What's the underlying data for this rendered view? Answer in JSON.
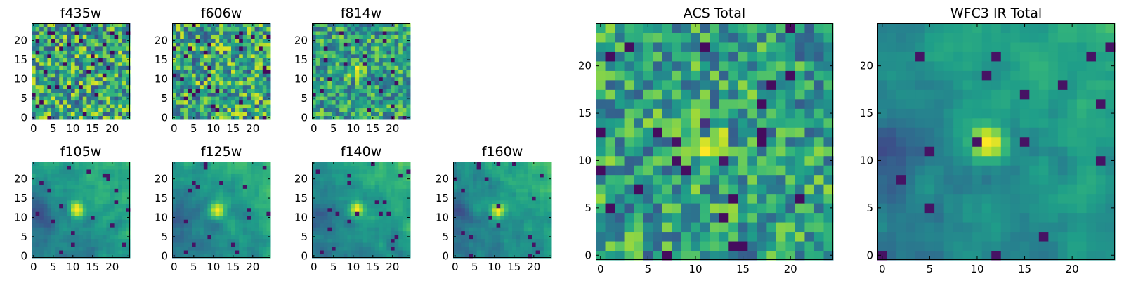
{
  "chart_data": [
    {
      "type": "heatmap",
      "title": "f435w",
      "style": "noise",
      "xlim": [
        0,
        24
      ],
      "ylim": [
        0,
        24
      ],
      "xticks": [
        "0",
        "5",
        "10",
        "15",
        "20"
      ],
      "yticks": [
        "0",
        "5",
        "10",
        "15",
        "20"
      ],
      "color_low": "#440154",
      "color_high": "#fde725"
    },
    {
      "type": "heatmap",
      "title": "f606w",
      "style": "noise",
      "xlim": [
        0,
        24
      ],
      "ylim": [
        0,
        24
      ],
      "xticks": [
        "0",
        "5",
        "10",
        "15",
        "20"
      ],
      "yticks": [
        "0",
        "5",
        "10",
        "15",
        "20"
      ],
      "color_low": "#440154",
      "color_high": "#fde725"
    },
    {
      "type": "heatmap",
      "title": "f814w",
      "style": "noise-peak",
      "peak": [
        11,
        12
      ],
      "xlim": [
        0,
        24
      ],
      "ylim": [
        0,
        24
      ],
      "xticks": [
        "0",
        "5",
        "10",
        "15",
        "20"
      ],
      "yticks": [
        "0",
        "5",
        "10",
        "15",
        "20"
      ],
      "color_low": "#440154",
      "color_high": "#fde725"
    },
    {
      "type": "heatmap",
      "title": "f105w",
      "style": "smooth-peak",
      "peak": [
        11,
        12
      ],
      "xlim": [
        0,
        24
      ],
      "ylim": [
        0,
        24
      ],
      "xticks": [
        "0",
        "5",
        "10",
        "15",
        "20"
      ],
      "yticks": [
        "0",
        "5",
        "10",
        "15",
        "20"
      ],
      "color_low": "#440154",
      "color_high": "#fde725"
    },
    {
      "type": "heatmap",
      "title": "f125w",
      "style": "smooth-peak",
      "peak": [
        11,
        12
      ],
      "xlim": [
        0,
        24
      ],
      "ylim": [
        0,
        24
      ],
      "xticks": [
        "0",
        "5",
        "10",
        "15",
        "20"
      ],
      "yticks": [
        "0",
        "5",
        "10",
        "15",
        "20"
      ],
      "color_low": "#440154",
      "color_high": "#fde725"
    },
    {
      "type": "heatmap",
      "title": "f140w",
      "style": "smooth-peak",
      "peak": [
        11,
        12
      ],
      "xlim": [
        0,
        24
      ],
      "ylim": [
        0,
        24
      ],
      "xticks": [
        "0",
        "5",
        "10",
        "15",
        "20"
      ],
      "yticks": [
        "0",
        "5",
        "10",
        "15",
        "20"
      ],
      "color_low": "#440154",
      "color_high": "#fde725"
    },
    {
      "type": "heatmap",
      "title": "f160w",
      "style": "smooth-peak",
      "peak": [
        11,
        12
      ],
      "xlim": [
        0,
        24
      ],
      "ylim": [
        0,
        24
      ],
      "xticks": [
        "0",
        "5",
        "10",
        "15",
        "20"
      ],
      "yticks": [
        "0",
        "5",
        "10",
        "15",
        "20"
      ],
      "color_low": "#440154",
      "color_high": "#fde725"
    },
    {
      "type": "heatmap",
      "title": "ACS Total",
      "style": "noise-peak",
      "peak": [
        11,
        12
      ],
      "xlim": [
        0,
        24
      ],
      "ylim": [
        0,
        24
      ],
      "xticks": [
        "0",
        "5",
        "10",
        "15",
        "20"
      ],
      "yticks": [
        "0",
        "5",
        "10",
        "15",
        "20"
      ],
      "color_low": "#440154",
      "color_high": "#fde725"
    },
    {
      "type": "heatmap",
      "title": "WFC3 IR Total",
      "style": "smooth-peak",
      "peak": [
        11,
        12
      ],
      "xlim": [
        0,
        24
      ],
      "ylim": [
        0,
        24
      ],
      "xticks": [
        "0",
        "5",
        "10",
        "15",
        "20"
      ],
      "yticks": [
        "0",
        "5",
        "10",
        "15",
        "20"
      ],
      "color_low": "#440154",
      "color_high": "#fde725"
    }
  ]
}
